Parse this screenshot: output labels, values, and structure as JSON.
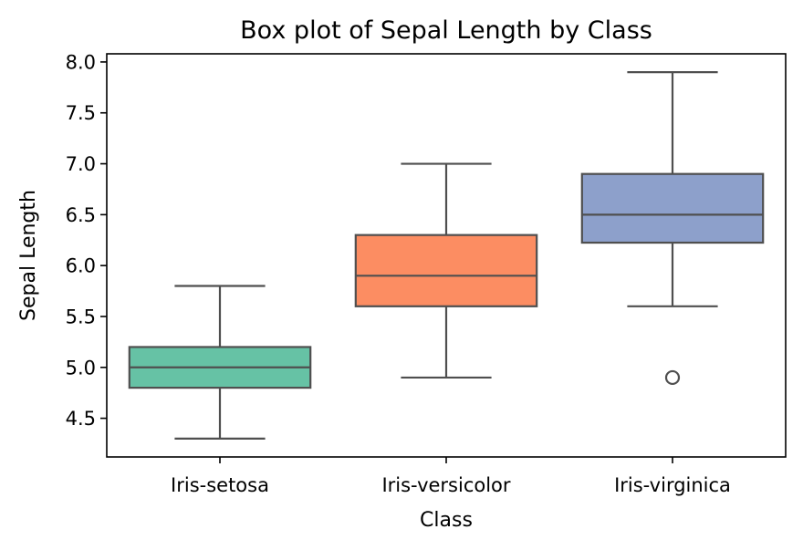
{
  "chart_data": {
    "type": "box",
    "title": "Box plot of Sepal Length by Class",
    "xlabel": "Class",
    "ylabel": "Sepal Length",
    "ylim": [
      4.12,
      8.08
    ],
    "yticks": [
      4.5,
      5.0,
      5.5,
      6.0,
      6.5,
      7.0,
      7.5,
      8.0
    ],
    "ytick_labels": [
      "4.5",
      "5.0",
      "5.5",
      "6.0",
      "6.5",
      "7.0",
      "7.5",
      "8.0"
    ],
    "grid": false,
    "categories": [
      "Iris-setosa",
      "Iris-versicolor",
      "Iris-virginica"
    ],
    "boxes": [
      {
        "category": "Iris-setosa",
        "whisker_low": 4.3,
        "q1": 4.8,
        "median": 5.0,
        "q3": 5.2,
        "whisker_high": 5.8,
        "outliers": [],
        "color": "#66c2a5"
      },
      {
        "category": "Iris-versicolor",
        "whisker_low": 4.9,
        "q1": 5.6,
        "median": 5.9,
        "q3": 6.3,
        "whisker_high": 7.0,
        "outliers": [],
        "color": "#fc8d62"
      },
      {
        "category": "Iris-virginica",
        "whisker_low": 5.6,
        "q1": 6.225,
        "median": 6.5,
        "q3": 6.9,
        "whisker_high": 7.9,
        "outliers": [
          4.9
        ],
        "color": "#8da0cb"
      }
    ]
  }
}
